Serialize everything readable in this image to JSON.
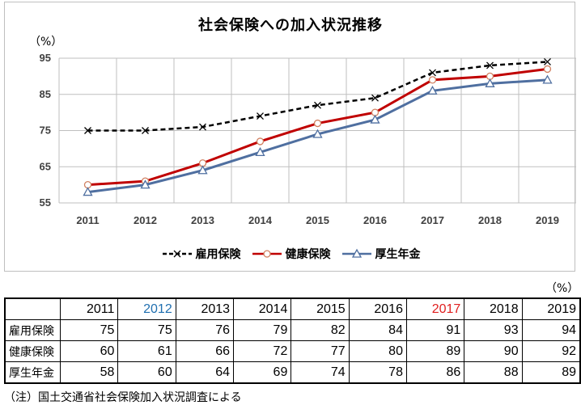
{
  "chart_data": {
    "type": "line",
    "title": "社会保険への加入状況推移",
    "unit": "（%）",
    "categories": [
      "2011",
      "2012",
      "2013",
      "2014",
      "2015",
      "2016",
      "2017",
      "2018",
      "2019"
    ],
    "ylim": [
      55,
      95
    ],
    "yticks": [
      55,
      65,
      75,
      85,
      95
    ],
    "grid": true,
    "legend": "bottom",
    "series": [
      {
        "name": "雇用保険",
        "values": [
          75,
          75,
          76,
          79,
          82,
          84,
          91,
          93,
          94
        ],
        "color": "#000000",
        "style": "dashed",
        "marker": "x"
      },
      {
        "name": "健康保険",
        "values": [
          60,
          61,
          66,
          72,
          77,
          80,
          89,
          90,
          92
        ],
        "color": "#c00000",
        "style": "solid",
        "marker": "circle"
      },
      {
        "name": "厚生年金",
        "values": [
          58,
          60,
          64,
          69,
          74,
          78,
          86,
          88,
          89
        ],
        "color": "#4f6fa0",
        "style": "solid",
        "marker": "triangle"
      }
    ]
  },
  "table": {
    "unit": "（%）",
    "years": [
      "2011",
      "2012",
      "2013",
      "2014",
      "2015",
      "2016",
      "2017",
      "2018",
      "2019"
    ],
    "year_colors": [
      "#000000",
      "#1f6fb0",
      "#000000",
      "#000000",
      "#000000",
      "#000000",
      "#e02020",
      "#000000",
      "#000000"
    ],
    "rows": [
      {
        "label": "雇用保険",
        "values": [
          "75",
          "75",
          "76",
          "79",
          "82",
          "84",
          "91",
          "93",
          "94"
        ]
      },
      {
        "label": "健康保険",
        "values": [
          "60",
          "61",
          "66",
          "72",
          "77",
          "80",
          "89",
          "90",
          "92"
        ]
      },
      {
        "label": "厚生年金",
        "values": [
          "58",
          "60",
          "64",
          "69",
          "74",
          "78",
          "86",
          "88",
          "89"
        ]
      }
    ]
  },
  "note": "（注）国土交通省社会保険加入状況調査による"
}
